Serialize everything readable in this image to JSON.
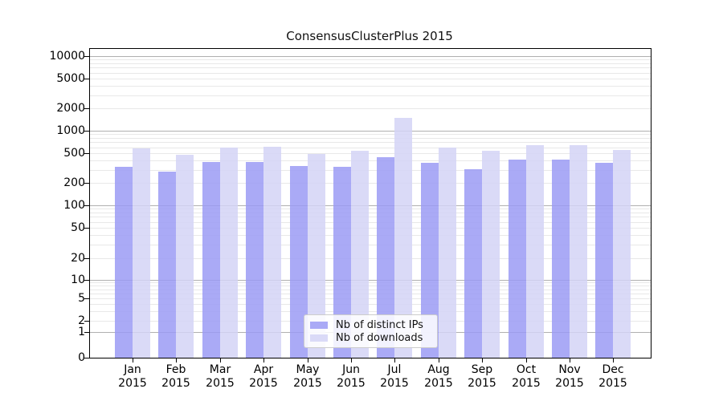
{
  "chart_data": {
    "type": "bar",
    "title": "ConsensusClusterPlus 2015",
    "categories": [
      "Jan",
      "Feb",
      "Mar",
      "Apr",
      "May",
      "Jun",
      "Jul",
      "Aug",
      "Sep",
      "Oct",
      "Nov",
      "Dec"
    ],
    "year_label": "2015",
    "series": [
      {
        "name": "Nb of distinct IPs",
        "color": "#9b9bf4",
        "values": [
          330,
          280,
          380,
          378,
          340,
          330,
          442,
          375,
          305,
          410,
          408,
          372
        ]
      },
      {
        "name": "Nb of downloads",
        "color": "#d4d4f6",
        "values": [
          580,
          478,
          592,
          603,
          490,
          538,
          1490,
          592,
          540,
          640,
          638,
          552
        ]
      }
    ],
    "y_ticks": [
      0,
      1,
      2,
      5,
      10,
      20,
      50,
      100,
      200,
      500,
      1000,
      2000,
      5000,
      10000
    ],
    "scale": "symlog",
    "ylim": [
      0,
      13000
    ],
    "grid": "on",
    "legend_position": "lower-center"
  }
}
